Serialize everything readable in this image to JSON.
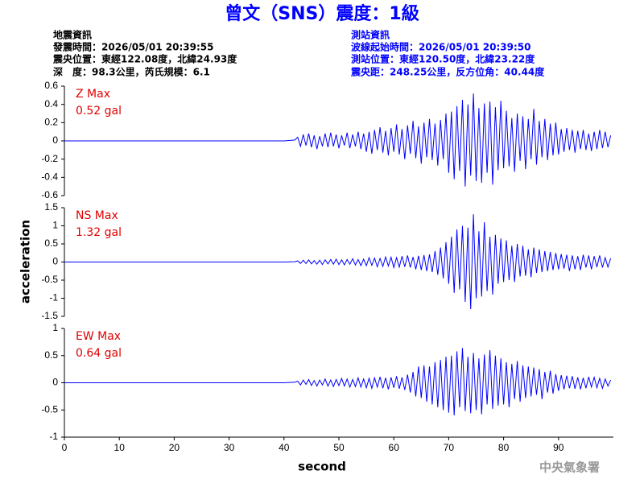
{
  "chart_data": {
    "type": "line",
    "title": "曾文（SNS）震度：1級",
    "info_left": [
      "地震資訊",
      "發震時間：2026/05/01 20:39:55",
      "震央位置：東經122.08度，北緯24.93度",
      "深　度：98.3公里，芮氏規模：6.1"
    ],
    "info_right": [
      "測站資訊",
      "波線起始時間：2026/05/01 20:39:50",
      "測站位置：東經120.50度，北緯23.22度",
      "震央距：248.25公里，反方位角：40.44度"
    ],
    "xlabel": "second",
    "ylabel": "acceleration",
    "credit": "中央氣象署",
    "xlim": [
      0,
      100
    ],
    "xticks": [
      0,
      10,
      20,
      30,
      40,
      50,
      60,
      70,
      80,
      90
    ],
    "color": "#0000ff",
    "x": [
      0,
      20,
      40,
      42,
      42.5,
      43,
      43.5,
      44,
      44.5,
      45,
      45.5,
      46,
      46.5,
      47,
      47.5,
      48,
      48.5,
      49,
      49.5,
      50,
      50.5,
      51,
      51.5,
      52,
      52.5,
      53,
      53.5,
      54,
      54.5,
      55,
      55.5,
      56,
      56.5,
      57,
      57.5,
      58,
      58.5,
      59,
      59.5,
      60,
      60.5,
      61,
      61.5,
      62,
      62.5,
      63,
      63.5,
      64,
      64.5,
      65,
      65.5,
      66,
      66.5,
      67,
      67.5,
      68,
      68.5,
      69,
      69.5,
      70,
      70.5,
      71,
      71.5,
      72,
      72.5,
      73,
      73.5,
      74,
      74.5,
      75,
      75.5,
      76,
      76.5,
      77,
      77.5,
      78,
      78.5,
      79,
      79.5,
      80,
      80.5,
      81,
      81.5,
      82,
      82.5,
      83,
      83.5,
      84,
      84.5,
      85,
      85.5,
      86,
      86.5,
      87,
      87.5,
      88,
      88.5,
      89,
      89.5,
      90,
      90.5,
      91,
      91.5,
      92,
      92.5,
      93,
      93.5,
      94,
      94.5,
      95,
      95.5,
      96,
      96.5,
      97,
      97.5,
      98,
      98.5,
      99,
      99.5
    ],
    "panels": [
      {
        "label": "Z Max",
        "peak_label": "0.52 gal",
        "ylim": [
          -0.6,
          0.6
        ],
        "yticks": [
          -0.6,
          -0.4,
          -0.2,
          0,
          0.2,
          0.4,
          0.6
        ],
        "values": [
          0,
          0,
          0,
          0.01,
          0.04,
          -0.06,
          0.07,
          -0.05,
          0.08,
          -0.07,
          0.06,
          -0.09,
          0.05,
          -0.06,
          0.08,
          -0.07,
          0.09,
          -0.06,
          0.07,
          -0.08,
          0.06,
          -0.05,
          0.09,
          -0.08,
          0.07,
          -0.06,
          0.1,
          -0.09,
          0.08,
          -0.12,
          0.1,
          -0.14,
          0.12,
          -0.1,
          0.15,
          -0.13,
          0.11,
          -0.16,
          0.14,
          -0.12,
          0.18,
          -0.15,
          0.13,
          -0.2,
          0.17,
          -0.14,
          0.22,
          -0.19,
          0.16,
          -0.25,
          0.2,
          -0.18,
          0.24,
          -0.21,
          0.19,
          -0.27,
          0.23,
          -0.2,
          0.3,
          -0.35,
          0.32,
          -0.42,
          0.38,
          -0.33,
          0.45,
          -0.5,
          0.4,
          -0.38,
          0.52,
          -0.44,
          0.36,
          -0.46,
          0.41,
          -0.35,
          0.43,
          -0.48,
          0.37,
          -0.32,
          0.44,
          -0.3,
          0.33,
          -0.28,
          0.25,
          -0.34,
          0.3,
          -0.22,
          0.27,
          -0.31,
          0.24,
          -0.2,
          0.35,
          -0.26,
          0.22,
          -0.18,
          0.24,
          -0.21,
          0.19,
          -0.16,
          0.2,
          -0.15,
          0.13,
          -0.12,
          0.14,
          -0.1,
          0.12,
          -0.13,
          0.11,
          -0.09,
          0.12,
          -0.1,
          0.08,
          -0.11,
          0.1,
          -0.09,
          0.12,
          -0.08,
          0.1,
          -0.07,
          0.06
        ]
      },
      {
        "label": "NS Max",
        "peak_label": "1.32 gal",
        "ylim": [
          -1.5,
          1.5
        ],
        "yticks": [
          -1.5,
          -1,
          -0.5,
          0,
          0.5,
          1,
          1.5
        ],
        "values": [
          0,
          0,
          0,
          0.01,
          0.03,
          -0.04,
          0.05,
          -0.04,
          0.06,
          -0.05,
          0.04,
          -0.06,
          0.05,
          -0.07,
          0.06,
          -0.05,
          0.07,
          -0.06,
          0.08,
          -0.07,
          0.06,
          -0.08,
          0.07,
          -0.06,
          0.09,
          -0.08,
          0.07,
          -0.1,
          0.08,
          -0.1,
          0.12,
          -0.09,
          0.11,
          -0.13,
          0.1,
          -0.12,
          0.14,
          -0.11,
          0.13,
          -0.15,
          0.12,
          -0.14,
          0.16,
          -0.13,
          0.18,
          -0.15,
          0.14,
          -0.2,
          0.17,
          -0.22,
          0.19,
          -0.25,
          0.21,
          -0.28,
          0.3,
          -0.35,
          0.4,
          -0.45,
          0.55,
          -0.6,
          0.7,
          -0.85,
          0.9,
          -0.75,
          1.0,
          -1.1,
          0.95,
          -1.3,
          1.32,
          -1.0,
          0.85,
          -0.95,
          1.1,
          -0.8,
          0.7,
          -0.9,
          0.75,
          -0.6,
          0.65,
          -0.55,
          0.6,
          -0.5,
          0.45,
          -0.55,
          0.5,
          -0.4,
          0.45,
          -0.38,
          0.35,
          -0.42,
          0.4,
          -0.3,
          0.35,
          -0.28,
          0.3,
          -0.25,
          0.28,
          -0.22,
          0.25,
          -0.2,
          0.22,
          -0.18,
          0.2,
          -0.25,
          0.18,
          -0.2,
          0.16,
          -0.22,
          0.2,
          -0.15,
          0.18,
          -0.2,
          0.16,
          -0.14,
          0.18,
          -0.15,
          0.12,
          -0.14,
          0.1
        ]
      },
      {
        "label": "EW Max",
        "peak_label": "0.64 gal",
        "ylim": [
          -1,
          1
        ],
        "yticks": [
          -1,
          -0.5,
          0,
          0.5,
          1
        ],
        "values": [
          0,
          0,
          0,
          0.01,
          0.03,
          -0.04,
          0.05,
          -0.03,
          0.06,
          -0.05,
          0.04,
          -0.06,
          0.05,
          -0.04,
          0.07,
          -0.06,
          0.05,
          -0.07,
          0.06,
          -0.05,
          0.08,
          -0.06,
          0.07,
          -0.08,
          0.06,
          -0.07,
          0.09,
          -0.08,
          0.07,
          -0.09,
          0.08,
          -0.1,
          0.09,
          -0.08,
          0.11,
          -0.1,
          0.09,
          -0.12,
          0.1,
          -0.09,
          0.12,
          -0.11,
          0.1,
          -0.13,
          0.15,
          -0.18,
          0.2,
          -0.25,
          0.3,
          -0.28,
          0.32,
          -0.35,
          0.3,
          -0.4,
          0.38,
          -0.45,
          0.42,
          -0.5,
          0.48,
          -0.55,
          0.5,
          -0.6,
          0.58,
          -0.45,
          0.64,
          -0.52,
          0.48,
          -0.56,
          0.55,
          -0.5,
          0.45,
          -0.58,
          0.52,
          -0.4,
          0.6,
          -0.48,
          0.5,
          -0.42,
          0.45,
          -0.4,
          0.38,
          -0.45,
          0.35,
          -0.3,
          0.4,
          -0.35,
          0.32,
          -0.28,
          0.3,
          -0.25,
          0.28,
          -0.22,
          0.25,
          -0.3,
          0.2,
          -0.18,
          0.22,
          -0.2,
          0.16,
          -0.15,
          0.14,
          -0.12,
          0.13,
          -0.1,
          0.12,
          -0.11,
          0.1,
          -0.12,
          0.09,
          -0.1,
          0.11,
          -0.08,
          0.1,
          -0.09,
          0.08,
          -0.1,
          0.07,
          -0.06,
          0.05
        ]
      }
    ]
  }
}
